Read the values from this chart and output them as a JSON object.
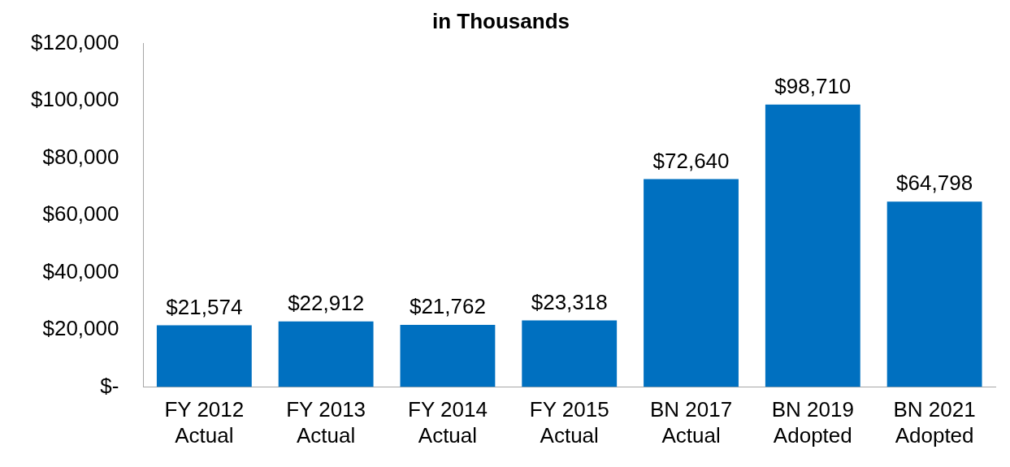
{
  "chart_data": {
    "type": "bar",
    "title": "in Thousands",
    "categories": [
      "FY 2012 Actual",
      "FY 2013 Actual",
      "FY 2014 Actual",
      "FY 2015 Actual",
      "BN 2017 Actual",
      "BN 2019 Adopted",
      "BN 2021 Adopted"
    ],
    "values": [
      21574,
      22912,
      21762,
      23318,
      72640,
      98710,
      64798
    ],
    "value_labels": [
      "$21,574",
      "$22,912",
      "$21,762",
      "$23,318",
      "$72,640",
      "$98,710",
      "$64,798"
    ],
    "color": "#0070c0",
    "ylim": [
      0,
      120000
    ],
    "yticks": [
      {
        "value": 0,
        "label": "$-"
      },
      {
        "value": 20000,
        "label": "$20,000"
      },
      {
        "value": 40000,
        "label": "$40,000"
      },
      {
        "value": 60000,
        "label": "$60,000"
      },
      {
        "value": 80000,
        "label": "$80,000"
      },
      {
        "value": 100000,
        "label": "$100,000"
      },
      {
        "value": 120000,
        "label": "$120,000"
      }
    ],
    "grid": false,
    "legend": false
  }
}
